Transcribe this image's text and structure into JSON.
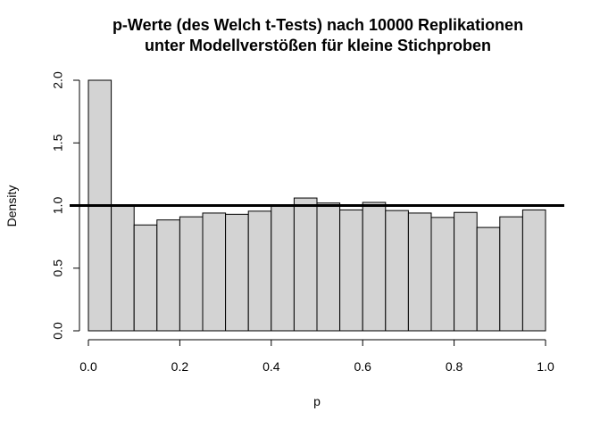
{
  "chart_data": {
    "type": "bar",
    "title_lines": [
      "p-Werte (des Welch t-Tests) nach 10000 Replikationen",
      "unter Modellverstößen für kleine Stichproben"
    ],
    "xlabel": "p",
    "ylabel": "Density",
    "bin_edges": [
      0.0,
      0.05,
      0.1,
      0.15,
      0.2,
      0.25,
      0.3,
      0.35,
      0.4,
      0.45,
      0.5,
      0.55,
      0.6,
      0.65,
      0.7,
      0.75,
      0.8,
      0.85,
      0.9,
      0.95,
      1.0
    ],
    "values": [
      2.0,
      1.0,
      0.845,
      0.885,
      0.91,
      0.94,
      0.93,
      0.955,
      1.0,
      1.06,
      1.02,
      0.965,
      1.025,
      0.96,
      0.94,
      0.905,
      0.945,
      0.825,
      0.91,
      0.965
    ],
    "xlim": [
      0.0,
      1.0
    ],
    "ylim": [
      0.0,
      2.0
    ],
    "x_ticks": [
      "0.0",
      "0.2",
      "0.4",
      "0.6",
      "0.8",
      "1.0"
    ],
    "y_ticks": [
      "0.0",
      "0.5",
      "1.0",
      "1.5",
      "2.0"
    ],
    "reference_line_y": 1.0,
    "bar_color": "#d3d3d3",
    "line_color": "#000000",
    "grid": false
  }
}
